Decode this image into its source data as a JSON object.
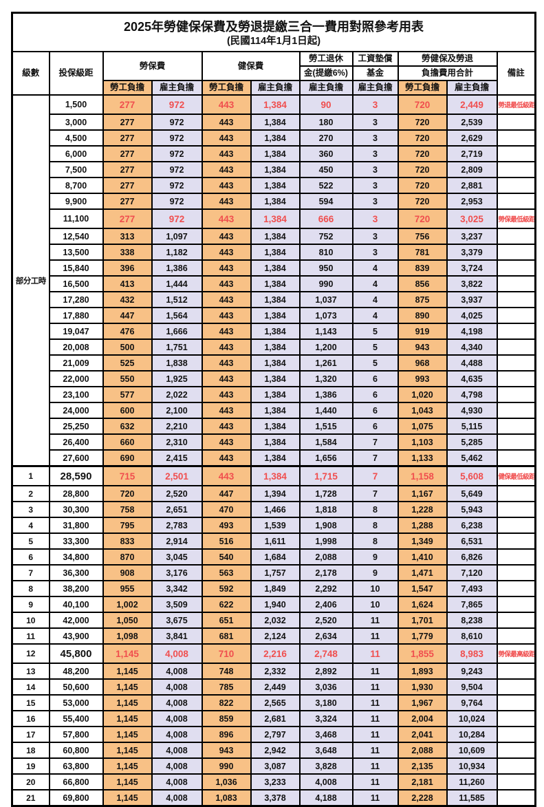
{
  "title": "2025年勞健保保費及勞退提繳三合一費用對照參考用表",
  "subtitle": "(民國114年1月1日起)",
  "header": {
    "level": "級數",
    "bracket": "投保級距",
    "labor_insurance": "勞保費",
    "health_insurance": "健保費",
    "pension_line1": "勞工退休",
    "pension_line2": "金(提繳6%)",
    "wage_fund_line1": "工資墊償",
    "wage_fund_line2": "基金",
    "total_line1": "勞健保及勞退",
    "total_line2": "負擔費用合計",
    "remark": "備註",
    "employee_burden": "勞工負擔",
    "employer_burden": "雇主負擔"
  },
  "part_time_label": "部分工時",
  "part_time_rowspan": 23,
  "colors": {
    "employee_fill": "#f8c186",
    "employer_fill": "#e0def0",
    "highlight_red": "#f04e4e",
    "border": "#000000"
  },
  "rows": [
    {
      "level": "",
      "bracket": "1,500",
      "values": [
        "277",
        "972",
        "443",
        "1,384",
        "90",
        "3",
        "720",
        "2,449"
      ],
      "remark": "勞退最低級距",
      "red": true,
      "big": false,
      "sep": false
    },
    {
      "level": "",
      "bracket": "3,000",
      "values": [
        "277",
        "972",
        "443",
        "1,384",
        "180",
        "3",
        "720",
        "2,539"
      ],
      "remark": "",
      "red": false,
      "big": false,
      "sep": false
    },
    {
      "level": "",
      "bracket": "4,500",
      "values": [
        "277",
        "972",
        "443",
        "1,384",
        "270",
        "3",
        "720",
        "2,629"
      ],
      "remark": "",
      "red": false,
      "big": false,
      "sep": false
    },
    {
      "level": "",
      "bracket": "6,000",
      "values": [
        "277",
        "972",
        "443",
        "1,384",
        "360",
        "3",
        "720",
        "2,719"
      ],
      "remark": "",
      "red": false,
      "big": false,
      "sep": false
    },
    {
      "level": "",
      "bracket": "7,500",
      "values": [
        "277",
        "972",
        "443",
        "1,384",
        "450",
        "3",
        "720",
        "2,809"
      ],
      "remark": "",
      "red": false,
      "big": false,
      "sep": false
    },
    {
      "level": "",
      "bracket": "8,700",
      "values": [
        "277",
        "972",
        "443",
        "1,384",
        "522",
        "3",
        "720",
        "2,881"
      ],
      "remark": "",
      "red": false,
      "big": false,
      "sep": false
    },
    {
      "level": "",
      "bracket": "9,900",
      "values": [
        "277",
        "972",
        "443",
        "1,384",
        "594",
        "3",
        "720",
        "2,953"
      ],
      "remark": "",
      "red": false,
      "big": false,
      "sep": false
    },
    {
      "level": "",
      "bracket": "11,100",
      "values": [
        "277",
        "972",
        "443",
        "1,384",
        "666",
        "3",
        "720",
        "3,025"
      ],
      "remark": "勞保最低級距",
      "red": true,
      "big": false,
      "sep": false
    },
    {
      "level": "",
      "bracket": "12,540",
      "values": [
        "313",
        "1,097",
        "443",
        "1,384",
        "752",
        "3",
        "756",
        "3,237"
      ],
      "remark": "",
      "red": false,
      "big": false,
      "sep": false
    },
    {
      "level": "",
      "bracket": "13,500",
      "values": [
        "338",
        "1,182",
        "443",
        "1,384",
        "810",
        "3",
        "781",
        "3,379"
      ],
      "remark": "",
      "red": false,
      "big": false,
      "sep": false
    },
    {
      "level": "",
      "bracket": "15,840",
      "values": [
        "396",
        "1,386",
        "443",
        "1,384",
        "950",
        "4",
        "839",
        "3,724"
      ],
      "remark": "",
      "red": false,
      "big": false,
      "sep": false
    },
    {
      "level": "",
      "bracket": "16,500",
      "values": [
        "413",
        "1,444",
        "443",
        "1,384",
        "990",
        "4",
        "856",
        "3,822"
      ],
      "remark": "",
      "red": false,
      "big": false,
      "sep": false
    },
    {
      "level": "",
      "bracket": "17,280",
      "values": [
        "432",
        "1,512",
        "443",
        "1,384",
        "1,037",
        "4",
        "875",
        "3,937"
      ],
      "remark": "",
      "red": false,
      "big": false,
      "sep": false
    },
    {
      "level": "",
      "bracket": "17,880",
      "values": [
        "447",
        "1,564",
        "443",
        "1,384",
        "1,073",
        "4",
        "890",
        "4,025"
      ],
      "remark": "",
      "red": false,
      "big": false,
      "sep": false
    },
    {
      "level": "",
      "bracket": "19,047",
      "values": [
        "476",
        "1,666",
        "443",
        "1,384",
        "1,143",
        "5",
        "919",
        "4,198"
      ],
      "remark": "",
      "red": false,
      "big": false,
      "sep": false
    },
    {
      "level": "",
      "bracket": "20,008",
      "values": [
        "500",
        "1,751",
        "443",
        "1,384",
        "1,200",
        "5",
        "943",
        "4,340"
      ],
      "remark": "",
      "red": false,
      "big": false,
      "sep": false
    },
    {
      "level": "",
      "bracket": "21,009",
      "values": [
        "525",
        "1,838",
        "443",
        "1,384",
        "1,261",
        "5",
        "968",
        "4,488"
      ],
      "remark": "",
      "red": false,
      "big": false,
      "sep": false
    },
    {
      "level": "",
      "bracket": "22,000",
      "values": [
        "550",
        "1,925",
        "443",
        "1,384",
        "1,320",
        "6",
        "993",
        "4,635"
      ],
      "remark": "",
      "red": false,
      "big": false,
      "sep": false
    },
    {
      "level": "",
      "bracket": "23,100",
      "values": [
        "577",
        "2,022",
        "443",
        "1,384",
        "1,386",
        "6",
        "1,020",
        "4,798"
      ],
      "remark": "",
      "red": false,
      "big": false,
      "sep": false
    },
    {
      "level": "",
      "bracket": "24,000",
      "values": [
        "600",
        "2,100",
        "443",
        "1,384",
        "1,440",
        "6",
        "1,043",
        "4,930"
      ],
      "remark": "",
      "red": false,
      "big": false,
      "sep": false
    },
    {
      "level": "",
      "bracket": "25,250",
      "values": [
        "632",
        "2,210",
        "443",
        "1,384",
        "1,515",
        "6",
        "1,075",
        "5,115"
      ],
      "remark": "",
      "red": false,
      "big": false,
      "sep": false
    },
    {
      "level": "",
      "bracket": "26,400",
      "values": [
        "660",
        "2,310",
        "443",
        "1,384",
        "1,584",
        "7",
        "1,103",
        "5,285"
      ],
      "remark": "",
      "red": false,
      "big": false,
      "sep": false
    },
    {
      "level": "",
      "bracket": "27,600",
      "values": [
        "690",
        "2,415",
        "443",
        "1,384",
        "1,656",
        "7",
        "1,133",
        "5,462"
      ],
      "remark": "",
      "red": false,
      "big": false,
      "sep": false
    },
    {
      "level": "1",
      "bracket": "28,590",
      "values": [
        "715",
        "2,501",
        "443",
        "1,384",
        "1,715",
        "7",
        "1,158",
        "5,608"
      ],
      "remark": "健保最低級距",
      "red": true,
      "big": true,
      "sep": true
    },
    {
      "level": "2",
      "bracket": "28,800",
      "values": [
        "720",
        "2,520",
        "447",
        "1,394",
        "1,728",
        "7",
        "1,167",
        "5,649"
      ],
      "remark": "",
      "red": false,
      "big": false,
      "sep": false
    },
    {
      "level": "3",
      "bracket": "30,300",
      "values": [
        "758",
        "2,651",
        "470",
        "1,466",
        "1,818",
        "8",
        "1,228",
        "5,943"
      ],
      "remark": "",
      "red": false,
      "big": false,
      "sep": false
    },
    {
      "level": "4",
      "bracket": "31,800",
      "values": [
        "795",
        "2,783",
        "493",
        "1,539",
        "1,908",
        "8",
        "1,288",
        "6,238"
      ],
      "remark": "",
      "red": false,
      "big": false,
      "sep": false
    },
    {
      "level": "5",
      "bracket": "33,300",
      "values": [
        "833",
        "2,914",
        "516",
        "1,611",
        "1,998",
        "8",
        "1,349",
        "6,531"
      ],
      "remark": "",
      "red": false,
      "big": false,
      "sep": false
    },
    {
      "level": "6",
      "bracket": "34,800",
      "values": [
        "870",
        "3,045",
        "540",
        "1,684",
        "2,088",
        "9",
        "1,410",
        "6,826"
      ],
      "remark": "",
      "red": false,
      "big": false,
      "sep": false
    },
    {
      "level": "7",
      "bracket": "36,300",
      "values": [
        "908",
        "3,176",
        "563",
        "1,757",
        "2,178",
        "9",
        "1,471",
        "7,120"
      ],
      "remark": "",
      "red": false,
      "big": false,
      "sep": false
    },
    {
      "level": "8",
      "bracket": "38,200",
      "values": [
        "955",
        "3,342",
        "592",
        "1,849",
        "2,292",
        "10",
        "1,547",
        "7,493"
      ],
      "remark": "",
      "red": false,
      "big": false,
      "sep": false
    },
    {
      "level": "9",
      "bracket": "40,100",
      "values": [
        "1,002",
        "3,509",
        "622",
        "1,940",
        "2,406",
        "10",
        "1,624",
        "7,865"
      ],
      "remark": "",
      "red": false,
      "big": false,
      "sep": false
    },
    {
      "level": "10",
      "bracket": "42,000",
      "values": [
        "1,050",
        "3,675",
        "651",
        "2,032",
        "2,520",
        "11",
        "1,701",
        "8,238"
      ],
      "remark": "",
      "red": false,
      "big": false,
      "sep": false
    },
    {
      "level": "11",
      "bracket": "43,900",
      "values": [
        "1,098",
        "3,841",
        "681",
        "2,124",
        "2,634",
        "11",
        "1,779",
        "8,610"
      ],
      "remark": "",
      "red": false,
      "big": false,
      "sep": false
    },
    {
      "level": "12",
      "bracket": "45,800",
      "values": [
        "1,145",
        "4,008",
        "710",
        "2,216",
        "2,748",
        "11",
        "1,855",
        "8,983"
      ],
      "remark": "勞保最高級距",
      "red": true,
      "big": true,
      "sep": false
    },
    {
      "level": "13",
      "bracket": "48,200",
      "values": [
        "1,145",
        "4,008",
        "748",
        "2,332",
        "2,892",
        "11",
        "1,893",
        "9,243"
      ],
      "remark": "",
      "red": false,
      "big": false,
      "sep": false
    },
    {
      "level": "14",
      "bracket": "50,600",
      "values": [
        "1,145",
        "4,008",
        "785",
        "2,449",
        "3,036",
        "11",
        "1,930",
        "9,504"
      ],
      "remark": "",
      "red": false,
      "big": false,
      "sep": false
    },
    {
      "level": "15",
      "bracket": "53,000",
      "values": [
        "1,145",
        "4,008",
        "822",
        "2,565",
        "3,180",
        "11",
        "1,967",
        "9,764"
      ],
      "remark": "",
      "red": false,
      "big": false,
      "sep": false
    },
    {
      "level": "16",
      "bracket": "55,400",
      "values": [
        "1,145",
        "4,008",
        "859",
        "2,681",
        "3,324",
        "11",
        "2,004",
        "10,024"
      ],
      "remark": "",
      "red": false,
      "big": false,
      "sep": false
    },
    {
      "level": "17",
      "bracket": "57,800",
      "values": [
        "1,145",
        "4,008",
        "896",
        "2,797",
        "3,468",
        "11",
        "2,041",
        "10,284"
      ],
      "remark": "",
      "red": false,
      "big": false,
      "sep": false
    },
    {
      "level": "18",
      "bracket": "60,800",
      "values": [
        "1,145",
        "4,008",
        "943",
        "2,942",
        "3,648",
        "11",
        "2,088",
        "10,609"
      ],
      "remark": "",
      "red": false,
      "big": false,
      "sep": false
    },
    {
      "level": "19",
      "bracket": "63,800",
      "values": [
        "1,145",
        "4,008",
        "990",
        "3,087",
        "3,828",
        "11",
        "2,135",
        "10,934"
      ],
      "remark": "",
      "red": false,
      "big": false,
      "sep": false
    },
    {
      "level": "20",
      "bracket": "66,800",
      "values": [
        "1,145",
        "4,008",
        "1,036",
        "3,233",
        "4,008",
        "11",
        "2,181",
        "11,260"
      ],
      "remark": "",
      "red": false,
      "big": false,
      "sep": false
    },
    {
      "level": "21",
      "bracket": "69,800",
      "values": [
        "1,145",
        "4,008",
        "1,083",
        "3,378",
        "4,188",
        "11",
        "2,228",
        "11,585"
      ],
      "remark": "",
      "red": false,
      "big": false,
      "sep": false
    }
  ]
}
